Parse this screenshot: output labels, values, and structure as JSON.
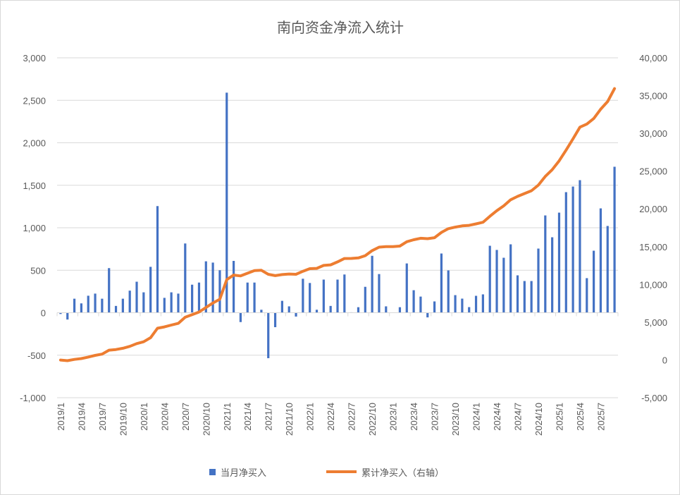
{
  "chart_data": {
    "type": "bar+line",
    "title": "南向资金净流入统计",
    "categories": [
      "2019/1",
      "2019/2",
      "2019/3",
      "2019/4",
      "2019/5",
      "2019/6",
      "2019/7",
      "2019/8",
      "2019/9",
      "2019/10",
      "2019/11",
      "2019/12",
      "2020/1",
      "2020/2",
      "2020/3",
      "2020/4",
      "2020/5",
      "2020/6",
      "2020/7",
      "2020/8",
      "2020/9",
      "2020/10",
      "2020/11",
      "2020/12",
      "2021/1",
      "2021/2",
      "2021/3",
      "2021/4",
      "2021/5",
      "2021/6",
      "2021/7",
      "2021/8",
      "2021/9",
      "2021/10",
      "2021/11",
      "2021/12",
      "2022/1",
      "2022/2",
      "2022/3",
      "2022/4",
      "2022/5",
      "2022/6",
      "2022/7",
      "2022/8",
      "2022/9",
      "2022/10",
      "2022/11",
      "2022/12",
      "2023/1",
      "2023/2",
      "2023/3",
      "2023/4",
      "2023/5",
      "2023/6",
      "2023/7",
      "2023/8",
      "2023/9",
      "2023/10",
      "2023/11",
      "2023/12",
      "2024/1",
      "2024/2",
      "2024/3",
      "2024/4",
      "2024/5",
      "2024/6",
      "2024/7",
      "2024/8",
      "2024/9",
      "2024/10",
      "2024/11",
      "2024/12",
      "2025/1",
      "2025/2",
      "2025/3",
      "2025/4",
      "2025/5",
      "2025/6",
      "2025/7",
      "2025/8",
      "2025/9"
    ],
    "x_tick_labels": [
      "2019/1",
      "2019/4",
      "2019/7",
      "2019/10",
      "2020/1",
      "2020/4",
      "2020/7",
      "2020/10",
      "2021/1",
      "2021/4",
      "2021/7",
      "2021/10",
      "2022/1",
      "2022/4",
      "2022/7",
      "2022/10",
      "2023/1",
      "2023/4",
      "2023/7",
      "2023/10",
      "2024/1",
      "2024/4",
      "2024/7",
      "2024/10",
      "2025/1",
      "2025/4",
      "2025/7"
    ],
    "series": [
      {
        "name": "当月净买入",
        "type": "bar",
        "axis": "left",
        "color": "#4472C4",
        "values": [
          -15,
          -80,
          165,
          110,
          200,
          225,
          165,
          525,
          80,
          165,
          260,
          365,
          240,
          540,
          1255,
          175,
          240,
          225,
          815,
          330,
          355,
          605,
          590,
          500,
          2590,
          610,
          -110,
          355,
          355,
          35,
          -535,
          -170,
          140,
          75,
          -45,
          400,
          350,
          35,
          390,
          80,
          390,
          450,
          5,
          65,
          305,
          670,
          455,
          75,
          0,
          65,
          580,
          265,
          190,
          -55,
          133,
          697,
          498,
          207,
          166,
          66,
          199,
          216,
          788,
          739,
          647,
          805,
          440,
          373,
          373,
          755,
          1145,
          888,
          1178,
          1419,
          1485,
          1560,
          407,
          730,
          1228,
          1021,
          1718
        ]
      },
      {
        "name": "累计净买入（右轴）",
        "type": "line",
        "axis": "right",
        "color": "#ED7D31",
        "values": [
          -15,
          -95,
          70,
          180,
          380,
          605,
          770,
          1295,
          1375,
          1540,
          1800,
          2165,
          2405,
          2945,
          4200,
          4375,
          4615,
          4840,
          5655,
          5985,
          6340,
          6945,
          7535,
          8035,
          10625,
          11235,
          11125,
          11480,
          11835,
          11870,
          11335,
          11165,
          11305,
          11380,
          11335,
          11735,
          12085,
          12120,
          12510,
          12590,
          12980,
          13430,
          13435,
          13500,
          13805,
          14475,
          14930,
          15005,
          15005,
          15070,
          15650,
          15915,
          16105,
          16050,
          16183,
          16880,
          17378,
          17585,
          17751,
          17817,
          18016,
          18232,
          19020,
          19759,
          20406,
          21211,
          21651,
          22024,
          22397,
          23152,
          24297,
          25185,
          26363,
          27782,
          29267,
          30827,
          31234,
          31964,
          33192,
          34213,
          35931
        ]
      }
    ],
    "y_left": {
      "range": [
        -1000,
        3000
      ],
      "ticks": [
        3000,
        2500,
        2000,
        1500,
        1000,
        500,
        0,
        -500,
        -1000
      ],
      "tick_labels": [
        "3,000",
        "2,500",
        "2,000",
        "1,500",
        "1,000",
        "500",
        "0",
        "-500",
        "-1,000"
      ]
    },
    "y_right": {
      "range": [
        -5000,
        40000
      ],
      "ticks": [
        40000,
        35000,
        30000,
        25000,
        20000,
        15000,
        10000,
        5000,
        0,
        -5000
      ],
      "tick_labels": [
        "40,000",
        "35,000",
        "30,000",
        "25,000",
        "20,000",
        "15,000",
        "10,000",
        "5,000",
        "0",
        "-5,000"
      ]
    },
    "grid": true,
    "legend": "bottom"
  }
}
